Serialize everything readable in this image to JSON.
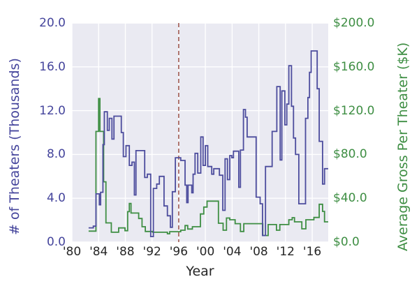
{
  "chart_data": {
    "type": "line",
    "title": "",
    "xlabel": "Year",
    "ylabel_left": "# of Theaters (Thousands)",
    "ylabel_right": "Average Gross Per Theater ($K)",
    "x_range": [
      1980,
      2018.4
    ],
    "y_left_range": [
      0,
      20
    ],
    "y_right_range": [
      0,
      200
    ],
    "grid": true,
    "legend": "none",
    "colors": {
      "left": "#45459c",
      "right": "#3e8e43",
      "vline": "#9c5148",
      "background": "#eaeaf2",
      "grid": "#ffffff",
      "x_text": "#262626"
    },
    "x_ticks": [
      {
        "value": 1980,
        "label": "'80"
      },
      {
        "value": 1984,
        "label": "'84"
      },
      {
        "value": 1988,
        "label": "'88"
      },
      {
        "value": 1992,
        "label": "'92"
      },
      {
        "value": 1996,
        "label": "'96"
      },
      {
        "value": 2000,
        "label": "'00"
      },
      {
        "value": 2004,
        "label": "'04"
      },
      {
        "value": 2008,
        "label": "'08"
      },
      {
        "value": 2012,
        "label": "'12"
      },
      {
        "value": 2016,
        "label": "'16"
      }
    ],
    "y_left_ticks": [
      {
        "value": 0,
        "label": "0.0"
      },
      {
        "value": 4,
        "label": "4.0"
      },
      {
        "value": 8,
        "label": "8.0"
      },
      {
        "value": 12,
        "label": "12.0"
      },
      {
        "value": 16,
        "label": "16.0"
      },
      {
        "value": 20,
        "label": "20.0"
      }
    ],
    "y_right_ticks": [
      {
        "value": 0,
        "label": "$0.0"
      },
      {
        "value": 40,
        "label": "$40.0"
      },
      {
        "value": 80,
        "label": "$80.0"
      },
      {
        "value": 120,
        "label": "$120.0"
      },
      {
        "value": 160,
        "label": "$160.0"
      },
      {
        "value": 200,
        "label": "$200.0"
      }
    ],
    "vline": {
      "x": 1996,
      "style": "dashed",
      "color": "#9c5148"
    },
    "series": [
      {
        "name": "theaters-thousands",
        "axis": "left",
        "color": "#4c4c9d",
        "step": true,
        "end_x": 2018.4,
        "points": [
          [
            1982.5,
            1.3
          ],
          [
            1983.2,
            1.45
          ],
          [
            1983.6,
            4.4
          ],
          [
            1984.1,
            3.4
          ],
          [
            1984.3,
            4.55
          ],
          [
            1984.65,
            8.9
          ],
          [
            1984.85,
            11.9
          ],
          [
            1985.3,
            10.2
          ],
          [
            1985.6,
            11.3
          ],
          [
            1986.0,
            9.4
          ],
          [
            1986.3,
            11.5
          ],
          [
            1987.4,
            10.0
          ],
          [
            1987.7,
            7.8
          ],
          [
            1988.1,
            8.8
          ],
          [
            1988.6,
            7.0
          ],
          [
            1989.0,
            7.3
          ],
          [
            1989.35,
            4.3
          ],
          [
            1989.6,
            8.35
          ],
          [
            1990.9,
            5.9
          ],
          [
            1991.3,
            6.2
          ],
          [
            1991.8,
            0.5
          ],
          [
            1992.2,
            4.9
          ],
          [
            1992.7,
            5.3
          ],
          [
            1993.1,
            6.0
          ],
          [
            1993.8,
            3.3
          ],
          [
            1994.3,
            2.4
          ],
          [
            1994.75,
            1.35
          ],
          [
            1995.05,
            4.6
          ],
          [
            1995.5,
            7.7
          ],
          [
            1996.3,
            7.45
          ],
          [
            1996.95,
            5.2
          ],
          [
            1997.2,
            3.6
          ],
          [
            1997.4,
            5.2
          ],
          [
            1997.95,
            4.5
          ],
          [
            1998.15,
            6.2
          ],
          [
            1998.45,
            8.1
          ],
          [
            1998.85,
            6.3
          ],
          [
            1999.3,
            9.6
          ],
          [
            1999.65,
            7.0
          ],
          [
            2000.0,
            8.8
          ],
          [
            2000.35,
            6.9
          ],
          [
            2000.95,
            6.2
          ],
          [
            2001.25,
            6.7
          ],
          [
            2002.1,
            6.1
          ],
          [
            2002.6,
            2.9
          ],
          [
            2002.95,
            7.6
          ],
          [
            2003.3,
            5.7
          ],
          [
            2003.65,
            7.9
          ],
          [
            2003.95,
            7.7
          ],
          [
            2004.2,
            8.3
          ],
          [
            2005.0,
            5.0
          ],
          [
            2005.25,
            8.4
          ],
          [
            2005.7,
            12.1
          ],
          [
            2006.0,
            11.4
          ],
          [
            2006.25,
            9.6
          ],
          [
            2007.6,
            4.1
          ],
          [
            2008.2,
            3.5
          ],
          [
            2008.55,
            0.6
          ],
          [
            2009.0,
            6.9
          ],
          [
            2010.0,
            10.1
          ],
          [
            2010.7,
            14.2
          ],
          [
            2011.2,
            7.5
          ],
          [
            2011.45,
            13.8
          ],
          [
            2011.9,
            10.7
          ],
          [
            2012.2,
            12.6
          ],
          [
            2012.5,
            16.1
          ],
          [
            2012.9,
            12.4
          ],
          [
            2013.2,
            9.5
          ],
          [
            2013.5,
            8.0
          ],
          [
            2014.0,
            3.5
          ],
          [
            2015.0,
            11.3
          ],
          [
            2015.35,
            13.2
          ],
          [
            2015.6,
            15.5
          ],
          [
            2015.85,
            17.45
          ],
          [
            2016.75,
            14.0
          ],
          [
            2017.05,
            9.2
          ],
          [
            2017.55,
            5.3
          ],
          [
            2017.85,
            6.7
          ]
        ]
      },
      {
        "name": "avg-gross-per-theater-k",
        "axis": "right",
        "color": "#3e8e43",
        "step": true,
        "end_x": 2018.4,
        "points": [
          [
            1982.5,
            10
          ],
          [
            1983.6,
            101
          ],
          [
            1984.0,
            131
          ],
          [
            1984.2,
            101
          ],
          [
            1984.75,
            55
          ],
          [
            1985.1,
            17.5
          ],
          [
            1985.9,
            9.0
          ],
          [
            1987.0,
            12.9
          ],
          [
            1987.95,
            10.4
          ],
          [
            1988.35,
            27.8
          ],
          [
            1988.6,
            35.2
          ],
          [
            1988.85,
            26.5
          ],
          [
            1990.0,
            21.5
          ],
          [
            1990.5,
            14.0
          ],
          [
            1991.0,
            9.7
          ],
          [
            1992.1,
            9.0
          ],
          [
            1994.3,
            7.6
          ],
          [
            1994.65,
            9.5
          ],
          [
            1996.3,
            10.8
          ],
          [
            1996.95,
            15.1
          ],
          [
            1997.35,
            11.9
          ],
          [
            1998.05,
            14.0
          ],
          [
            1999.25,
            25.7
          ],
          [
            1999.75,
            32.0
          ],
          [
            2000.25,
            37.4
          ],
          [
            2001.95,
            17.2
          ],
          [
            2002.65,
            10.8
          ],
          [
            2003.15,
            22.0
          ],
          [
            2003.65,
            20.4
          ],
          [
            2004.45,
            16.8
          ],
          [
            2005.25,
            9.7
          ],
          [
            2005.75,
            16.8
          ],
          [
            2008.6,
            6.0
          ],
          [
            2009.4,
            16.0
          ],
          [
            2010.65,
            10.8
          ],
          [
            2011.15,
            16.0
          ],
          [
            2012.5,
            20.4
          ],
          [
            2013.0,
            22.3
          ],
          [
            2013.35,
            18.5
          ],
          [
            2014.45,
            12.1
          ],
          [
            2015.05,
            20.4
          ],
          [
            2016.25,
            22.5
          ],
          [
            2017.05,
            34.5
          ],
          [
            2017.55,
            28.0
          ],
          [
            2017.85,
            18.5
          ]
        ]
      }
    ]
  }
}
